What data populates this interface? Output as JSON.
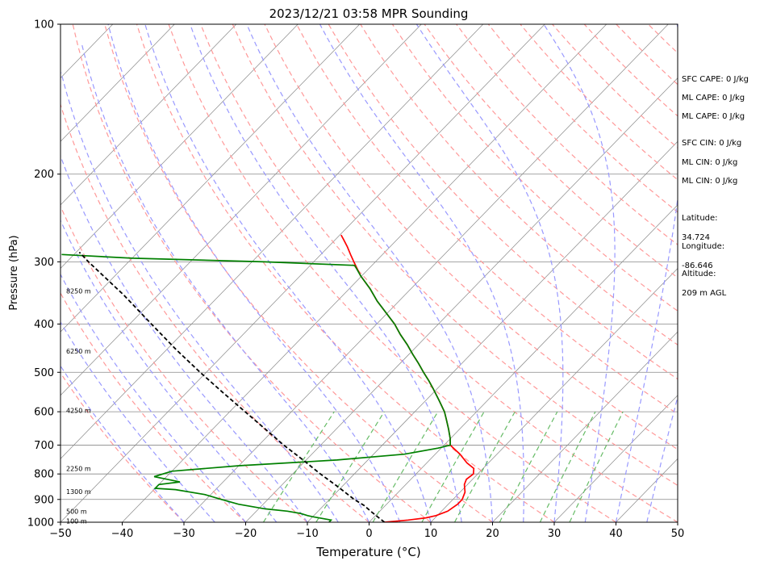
{
  "chart_data": {
    "type": "line",
    "subtype": "skew-t log-p sounding",
    "title": "2023/12/21 03:58 MPR Sounding",
    "xlabel": "Temperature (°C)",
    "ylabel": "Pressure (hPa)",
    "xlim": [
      -50,
      50
    ],
    "ylim": [
      1000,
      100
    ],
    "yscale": "log",
    "x_ticks": [
      "−50",
      "−40",
      "−30",
      "−20",
      "−10",
      "0",
      "10",
      "20",
      "30",
      "40",
      "50"
    ],
    "y_ticks": [
      "100",
      "200",
      "300",
      "400",
      "500",
      "600",
      "700",
      "800",
      "900",
      "1000"
    ],
    "y_tick_values": [
      100,
      200,
      300,
      400,
      500,
      600,
      700,
      800,
      900,
      1000
    ],
    "grid": true,
    "height_labels": [
      {
        "text": "8250 m",
        "p": 343
      },
      {
        "text": "6250 m",
        "p": 453
      },
      {
        "text": "4250 m",
        "p": 596
      },
      {
        "text": "2250 m",
        "p": 780
      },
      {
        "text": "1300 m",
        "p": 868
      },
      {
        "text": "500 m",
        "p": 950
      },
      {
        "text": "100 m",
        "p": 995
      }
    ],
    "series": [
      {
        "key": "temperature",
        "color": "#ff0000",
        "points": [
          [
            1000,
            2.5
          ],
          [
            990,
            6.0
          ],
          [
            980,
            8.5
          ],
          [
            970,
            9.8
          ],
          [
            950,
            11.0
          ],
          [
            920,
            11.5
          ],
          [
            900,
            11.5
          ],
          [
            870,
            10.8
          ],
          [
            840,
            9.5
          ],
          [
            820,
            9.0
          ],
          [
            800,
            9.3
          ],
          [
            780,
            8.5
          ],
          [
            760,
            6.5
          ],
          [
            730,
            4.0
          ],
          [
            710,
            2.0
          ],
          [
            700,
            1.0
          ],
          [
            680,
            0.0
          ],
          [
            650,
            -1.8
          ],
          [
            620,
            -3.8
          ],
          [
            600,
            -5.2
          ],
          [
            570,
            -7.8
          ],
          [
            540,
            -10.6
          ],
          [
            520,
            -12.6
          ],
          [
            500,
            -14.8
          ],
          [
            480,
            -17.0
          ],
          [
            460,
            -19.4
          ],
          [
            440,
            -21.8
          ],
          [
            420,
            -24.5
          ],
          [
            400,
            -27.1
          ],
          [
            380,
            -30.2
          ],
          [
            360,
            -33.5
          ],
          [
            340,
            -36.6
          ],
          [
            320,
            -40.2
          ],
          [
            300,
            -43.5
          ],
          [
            290,
            -45.2
          ],
          [
            280,
            -46.9
          ],
          [
            270,
            -48.8
          ],
          [
            265,
            -49.8
          ]
        ]
      },
      {
        "key": "dewpoint",
        "color": "#008000",
        "points": [
          [
            1000,
            -6.5
          ],
          [
            990,
            -6.5
          ],
          [
            975,
            -10.0
          ],
          [
            970,
            -11.0
          ],
          [
            960,
            -12.5
          ],
          [
            950,
            -15.0
          ],
          [
            940,
            -19.0
          ],
          [
            920,
            -24.0
          ],
          [
            900,
            -27.5
          ],
          [
            880,
            -31.0
          ],
          [
            860,
            -36.5
          ],
          [
            855,
            -40.0
          ],
          [
            840,
            -40.0
          ],
          [
            830,
            -37.0
          ],
          [
            820,
            -39.5
          ],
          [
            810,
            -42.0
          ],
          [
            790,
            -40.0
          ],
          [
            770,
            -30.0
          ],
          [
            750,
            -15.0
          ],
          [
            730,
            -5.0
          ],
          [
            710,
            -0.5
          ],
          [
            700,
            1.0
          ],
          [
            680,
            0.0
          ],
          [
            650,
            -1.8
          ],
          [
            620,
            -3.8
          ],
          [
            600,
            -5.2
          ],
          [
            570,
            -7.8
          ],
          [
            540,
            -10.6
          ],
          [
            520,
            -12.6
          ],
          [
            500,
            -14.8
          ],
          [
            480,
            -17.0
          ],
          [
            460,
            -19.4
          ],
          [
            440,
            -21.8
          ],
          [
            420,
            -24.5
          ],
          [
            400,
            -27.1
          ],
          [
            380,
            -30.2
          ],
          [
            360,
            -33.5
          ],
          [
            340,
            -36.6
          ],
          [
            320,
            -40.2
          ],
          [
            305,
            -42.8
          ],
          [
            300,
            -58.0
          ],
          [
            295,
            -80.0
          ],
          [
            290,
            -92.0
          ]
        ]
      },
      {
        "key": "parcel",
        "color": "#000000",
        "points": [
          [
            1000,
            2.5
          ],
          [
            975,
            0.5
          ],
          [
            950,
            -1.5
          ],
          [
            925,
            -3.5
          ],
          [
            900,
            -6.0
          ],
          [
            850,
            -10.5
          ],
          [
            800,
            -15.5
          ],
          [
            750,
            -20.5
          ],
          [
            700,
            -26.0
          ],
          [
            650,
            -31.5
          ],
          [
            600,
            -37.5
          ],
          [
            550,
            -44.0
          ],
          [
            500,
            -51.0
          ],
          [
            450,
            -58.5
          ],
          [
            400,
            -66.5
          ],
          [
            350,
            -75.5
          ],
          [
            300,
            -86.5
          ],
          [
            287,
            -89.5
          ]
        ]
      }
    ]
  },
  "indices": [
    "SFC CAPE: 0 J/kg",
    "ML CAPE: 0 J/kg",
    "ML CAPE: 0 J/kg",
    "SFC CIN: 0 J/kg",
    "ML CIN: 0 J/kg",
    "ML CIN: 0 J/kg"
  ],
  "station": {
    "latitude_label": "Latitude:",
    "latitude": "34.724",
    "longitude_label": "Longitude:",
    "longitude": "-86.646",
    "altitude_label": "Altitude:",
    "altitude": "209 m AGL"
  },
  "colors": {
    "dry_adiabats": "#ff9999",
    "moist_adiabats": "#9999ff",
    "mixing_ratio": "#66bb66",
    "isotherms": "#888888",
    "isobars": "#888888"
  }
}
